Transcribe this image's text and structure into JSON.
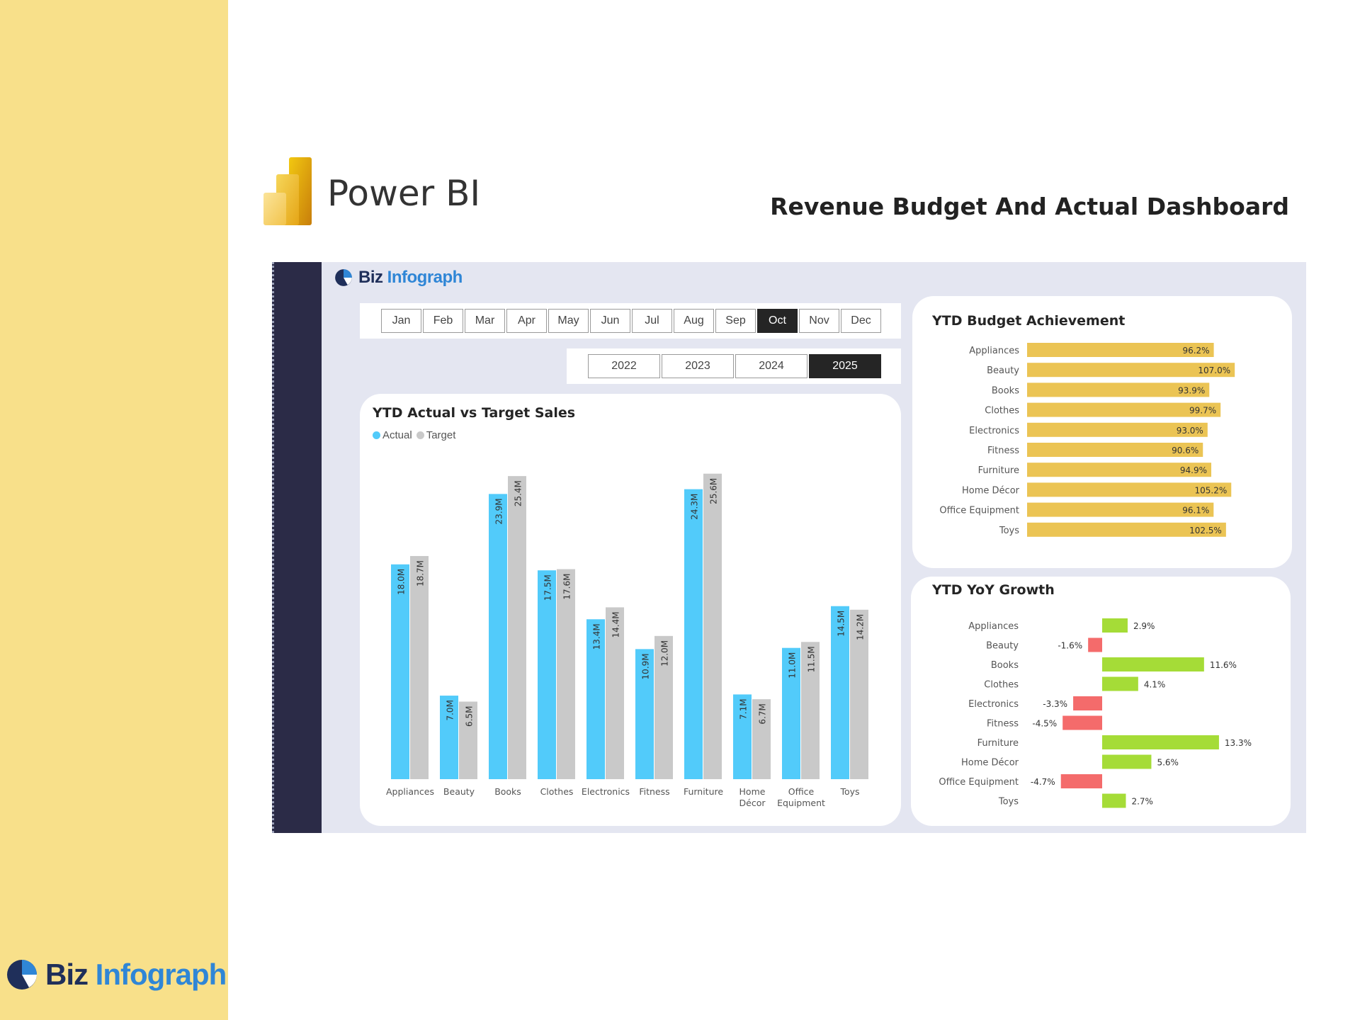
{
  "page": {
    "product_name": "Power BI",
    "dashboard_title": "Revenue Budget And Actual Dashboard",
    "brand_biz": "Biz",
    "brand_infograph": "Infograph"
  },
  "filters": {
    "months": [
      "Jan",
      "Feb",
      "Mar",
      "Apr",
      "May",
      "Jun",
      "Jul",
      "Aug",
      "Sep",
      "Oct",
      "Nov",
      "Dec"
    ],
    "selected_month": "Oct",
    "years": [
      "2022",
      "2023",
      "2024",
      "2025"
    ],
    "selected_year": "2025"
  },
  "colors": {
    "sidebar": "#F8E08A",
    "actual": "#52CBFA",
    "target": "#C9C9C9",
    "budget_bar": "#EBC454",
    "growth_positive": "#A5DC37",
    "growth_negative": "#F46B6B",
    "rail": "#2B2B47"
  },
  "chart_data": [
    {
      "type": "bar",
      "title": "YTD Actual vs Target Sales",
      "categories": [
        "Appliances",
        "Beauty",
        "Books",
        "Clothes",
        "Electronics",
        "Fitness",
        "Furniture",
        "Home Décor",
        "Office Equipment",
        "Toys"
      ],
      "category_lines": [
        [
          "Appliances"
        ],
        [
          "Beauty"
        ],
        [
          "Books"
        ],
        [
          "Clothes"
        ],
        [
          "Electronics"
        ],
        [
          "Fitness"
        ],
        [
          "Furniture"
        ],
        [
          "Home",
          "Décor"
        ],
        [
          "Office",
          "Equipment"
        ],
        [
          "Toys"
        ]
      ],
      "series": [
        {
          "name": "Actual",
          "values": [
            18.0,
            7.0,
            23.9,
            17.5,
            13.4,
            10.9,
            24.3,
            7.1,
            11.0,
            14.5
          ],
          "labels": [
            "18.0M",
            "7.0M",
            "23.9M",
            "17.5M",
            "13.4M",
            "10.9M",
            "24.3M",
            "7.1M",
            "11.0M",
            "14.5M"
          ]
        },
        {
          "name": "Target",
          "values": [
            18.7,
            6.5,
            25.4,
            17.6,
            14.4,
            12.0,
            25.6,
            6.7,
            11.5,
            14.2
          ],
          "labels": [
            "18.7M",
            "6.5M",
            "25.4M",
            "17.6M",
            "14.4M",
            "12.0M",
            "25.6M",
            "6.7M",
            "11.5M",
            "14.2M"
          ]
        }
      ],
      "ylim": [
        0,
        26
      ],
      "legend": "top-left"
    },
    {
      "type": "bar",
      "orientation": "horizontal",
      "title": "YTD Budget Achievement",
      "categories": [
        "Appliances",
        "Beauty",
        "Books",
        "Clothes",
        "Electronics",
        "Fitness",
        "Furniture",
        "Home Décor",
        "Office Equipment",
        "Toys"
      ],
      "values": [
        96.2,
        107.0,
        93.9,
        99.7,
        93.0,
        90.6,
        94.9,
        105.2,
        96.1,
        102.5
      ],
      "labels": [
        "96.2%",
        "107.0%",
        "93.9%",
        "99.7%",
        "93.0%",
        "90.6%",
        "94.9%",
        "105.2%",
        "96.1%",
        "102.5%"
      ]
    },
    {
      "type": "bar",
      "orientation": "horizontal",
      "title": "YTD YoY Growth",
      "categories": [
        "Appliances",
        "Beauty",
        "Books",
        "Clothes",
        "Electronics",
        "Fitness",
        "Furniture",
        "Home Décor",
        "Office Equipment",
        "Toys"
      ],
      "values": [
        2.9,
        -1.6,
        11.6,
        4.1,
        -3.3,
        -4.5,
        13.3,
        5.6,
        -4.7,
        2.7
      ],
      "labels": [
        "2.9%",
        "-1.6%",
        "11.6%",
        "4.1%",
        "-3.3%",
        "-4.5%",
        "13.3%",
        "5.6%",
        "-4.7%",
        "2.7%"
      ]
    }
  ]
}
